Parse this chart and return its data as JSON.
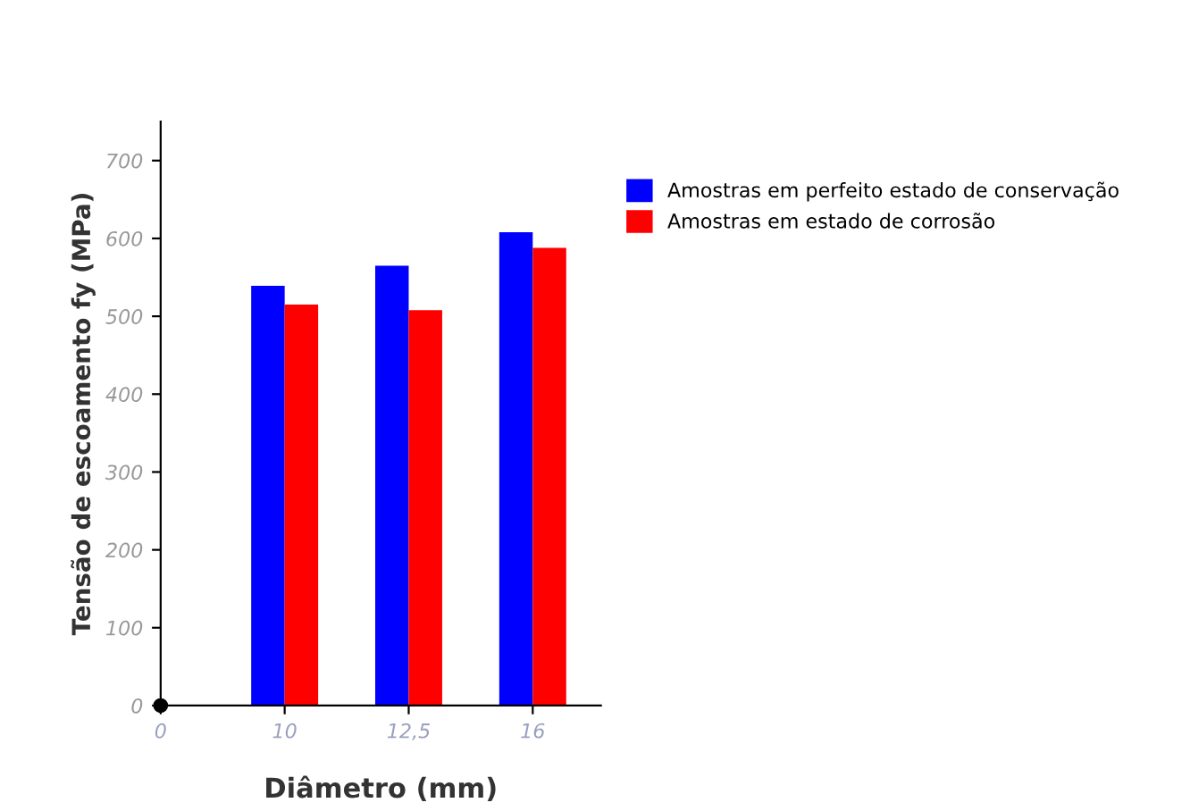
{
  "chart_data": {
    "type": "bar",
    "xlabel": "Diâmetro (mm)",
    "ylabel": "Tensão de escoamento fy (MPa)",
    "categories": [
      "0",
      "10",
      "12,5",
      "16"
    ],
    "series": [
      {
        "name": "Amostras em perfeito estado de conservação",
        "color": "#0000ff",
        "values": [
          null,
          539,
          565,
          608
        ]
      },
      {
        "name": "Amostras em estado de corrosão",
        "color": "#ff0000",
        "values": [
          null,
          515,
          508,
          588
        ]
      }
    ],
    "ylim": [
      0,
      750
    ],
    "yticks": [
      0,
      100,
      200,
      300,
      400,
      500,
      600,
      700
    ],
    "grid": false,
    "legend": "right"
  }
}
